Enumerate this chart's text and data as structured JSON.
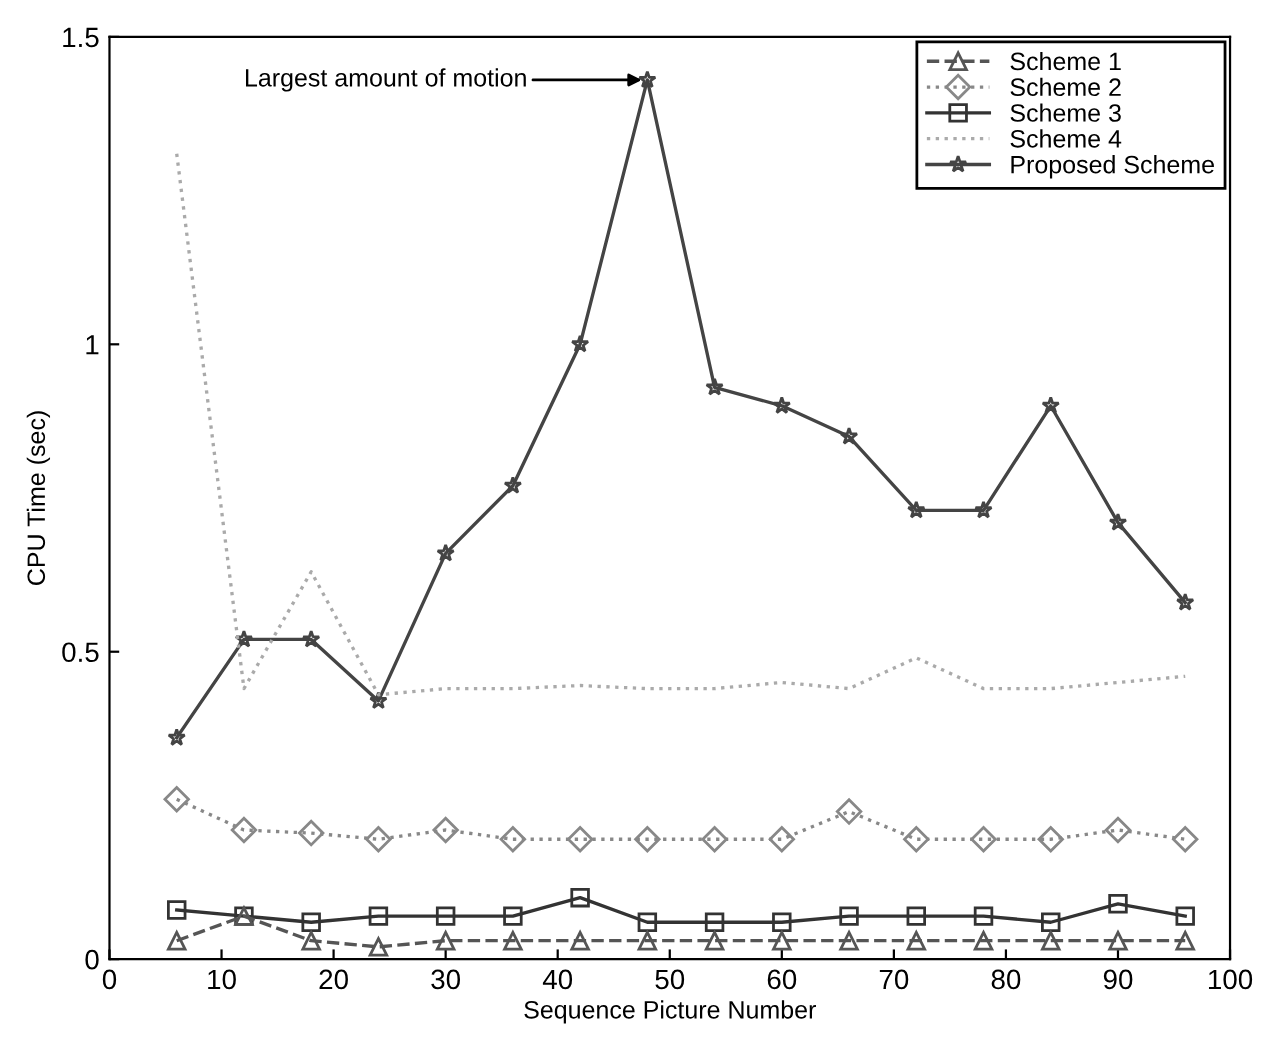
{
  "chart_data": {
    "type": "line",
    "xlabel": "Sequence Picture Number",
    "ylabel": "CPU Time (sec)",
    "x": [
      6,
      12,
      18,
      24,
      30,
      36,
      42,
      48,
      54,
      60,
      66,
      72,
      78,
      84,
      90,
      96
    ],
    "xlim": [
      0,
      100
    ],
    "xticks": [
      0,
      10,
      20,
      30,
      40,
      50,
      60,
      70,
      80,
      90,
      100
    ],
    "ylim": [
      0,
      1.5
    ],
    "yticks": [
      0,
      0.5,
      1,
      1.5
    ],
    "grid": false,
    "legend": "top right",
    "annotations": [
      {
        "text": "Largest amount of motion",
        "x": 48,
        "y": 1.43
      }
    ],
    "series": [
      {
        "name": "Scheme 1",
        "color": "#555555",
        "marker": "triangle",
        "line_style": "dashed",
        "values": [
          0.03,
          0.07,
          0.03,
          0.02,
          0.03,
          0.03,
          0.03,
          0.03,
          0.03,
          0.03,
          0.03,
          0.03,
          0.03,
          0.03,
          0.03,
          0.03
        ]
      },
      {
        "name": "Scheme 2",
        "color": "#888888",
        "marker": "diamond",
        "line_style": "dotted",
        "values": [
          0.26,
          0.21,
          0.205,
          0.195,
          0.21,
          0.195,
          0.195,
          0.195,
          0.195,
          0.195,
          0.24,
          0.195,
          0.195,
          0.195,
          0.21,
          0.195
        ]
      },
      {
        "name": "Scheme 3",
        "color": "#333333",
        "marker": "square",
        "line_style": "solid",
        "values": [
          0.08,
          0.07,
          0.06,
          0.07,
          0.07,
          0.07,
          0.1,
          0.06,
          0.06,
          0.06,
          0.07,
          0.07,
          0.07,
          0.06,
          0.09,
          0.07
        ]
      },
      {
        "name": "Scheme 4",
        "color": "#aaaaaa",
        "marker": "none",
        "line_style": "dotted",
        "values": [
          1.31,
          0.44,
          0.63,
          0.43,
          0.44,
          0.44,
          0.445,
          0.44,
          0.44,
          0.45,
          0.44,
          0.49,
          0.44,
          0.44,
          0.45,
          0.46
        ]
      },
      {
        "name": "Proposed Scheme",
        "color": "#444444",
        "marker": "star",
        "line_style": "solid",
        "values": [
          0.36,
          0.52,
          0.52,
          0.42,
          0.66,
          0.77,
          1.0,
          1.43,
          0.93,
          0.9,
          0.85,
          0.73,
          0.73,
          0.9,
          0.71,
          0.58
        ]
      }
    ]
  }
}
